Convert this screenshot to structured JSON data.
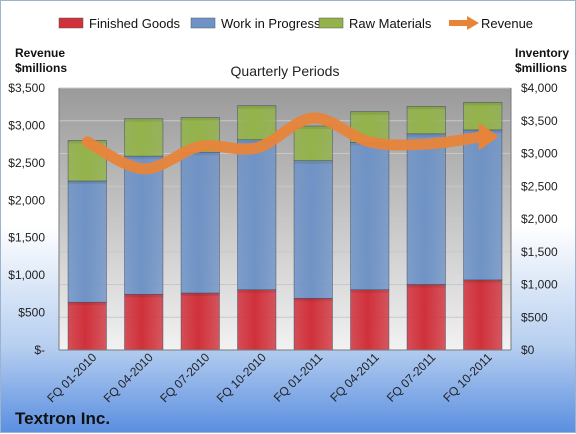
{
  "chart_data": {
    "type": "bar",
    "stacked": true,
    "title": "Quarterly Periods",
    "company": "Textron Inc.",
    "categories": [
      "FQ 01-2010",
      "FQ 04-2010",
      "FQ 07-2010",
      "FQ 10-2010",
      "FQ 01-2011",
      "FQ 04-2011",
      "FQ 07-2011",
      "FQ 10-2011"
    ],
    "series": [
      {
        "name": "Finished Goods",
        "axis": "right",
        "color": "#d0313b",
        "values": [
          730,
          850,
          870,
          920,
          790,
          920,
          1000,
          1070
        ]
      },
      {
        "name": "Work in Progress",
        "axis": "right",
        "color": "#6f93c6",
        "values": [
          1850,
          2110,
          2150,
          2290,
          2100,
          2250,
          2300,
          2290
        ]
      },
      {
        "name": "Raw Materials",
        "axis": "right",
        "color": "#93b34a",
        "values": [
          620,
          570,
          530,
          520,
          530,
          470,
          420,
          420
        ]
      }
    ],
    "line_series": {
      "name": "Revenue",
      "axis": "left",
      "color": "#e8843a",
      "values": [
        2780,
        2420,
        2720,
        2700,
        3100,
        2780,
        2750,
        2850
      ]
    },
    "left_axis": {
      "title_line1": "Revenue",
      "title_line2": "$millions",
      "ylim": [
        0,
        3500
      ],
      "ticks": [
        {
          "v": 0,
          "label": "$-"
        },
        {
          "v": 500,
          "label": "$500"
        },
        {
          "v": 1000,
          "label": "$1,000"
        },
        {
          "v": 1500,
          "label": "$1,500"
        },
        {
          "v": 2000,
          "label": "$2,000"
        },
        {
          "v": 2500,
          "label": "$2,500"
        },
        {
          "v": 3000,
          "label": "$3,000"
        },
        {
          "v": 3500,
          "label": "$3,500"
        }
      ]
    },
    "right_axis": {
      "title_line1": "Inventory",
      "title_line2": "$millions",
      "ylim": [
        0,
        4000
      ],
      "ticks": [
        {
          "v": 0,
          "label": "$0"
        },
        {
          "v": 500,
          "label": "$500"
        },
        {
          "v": 1000,
          "label": "$1,000"
        },
        {
          "v": 1500,
          "label": "$1,500"
        },
        {
          "v": 2000,
          "label": "$2,000"
        },
        {
          "v": 2500,
          "label": "$2,500"
        },
        {
          "v": 3000,
          "label": "$3,000"
        },
        {
          "v": 3500,
          "label": "$3,500"
        },
        {
          "v": 4000,
          "label": "$4,000"
        }
      ]
    },
    "grid": true,
    "legend_position": "top"
  }
}
